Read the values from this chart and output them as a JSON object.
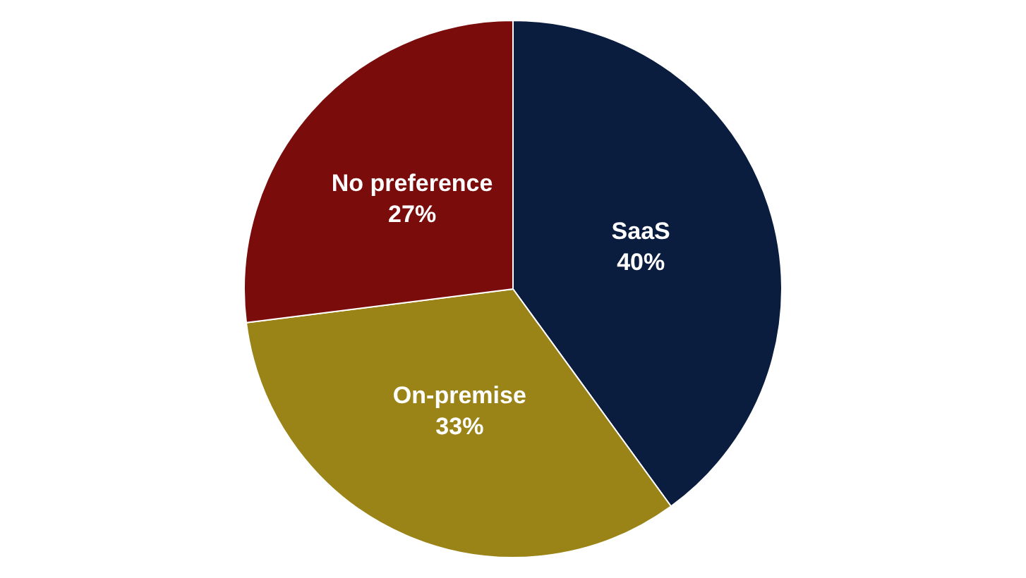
{
  "chart_data": {
    "type": "pie",
    "categories": [
      "SaaS",
      "On-premise",
      "No preference"
    ],
    "values": [
      40,
      33,
      27
    ],
    "value_labels": [
      "40%",
      "33%",
      "27%"
    ],
    "colors": [
      "#0b1d3f",
      "#9a8418",
      "#7a0c0c"
    ],
    "legend": false
  }
}
